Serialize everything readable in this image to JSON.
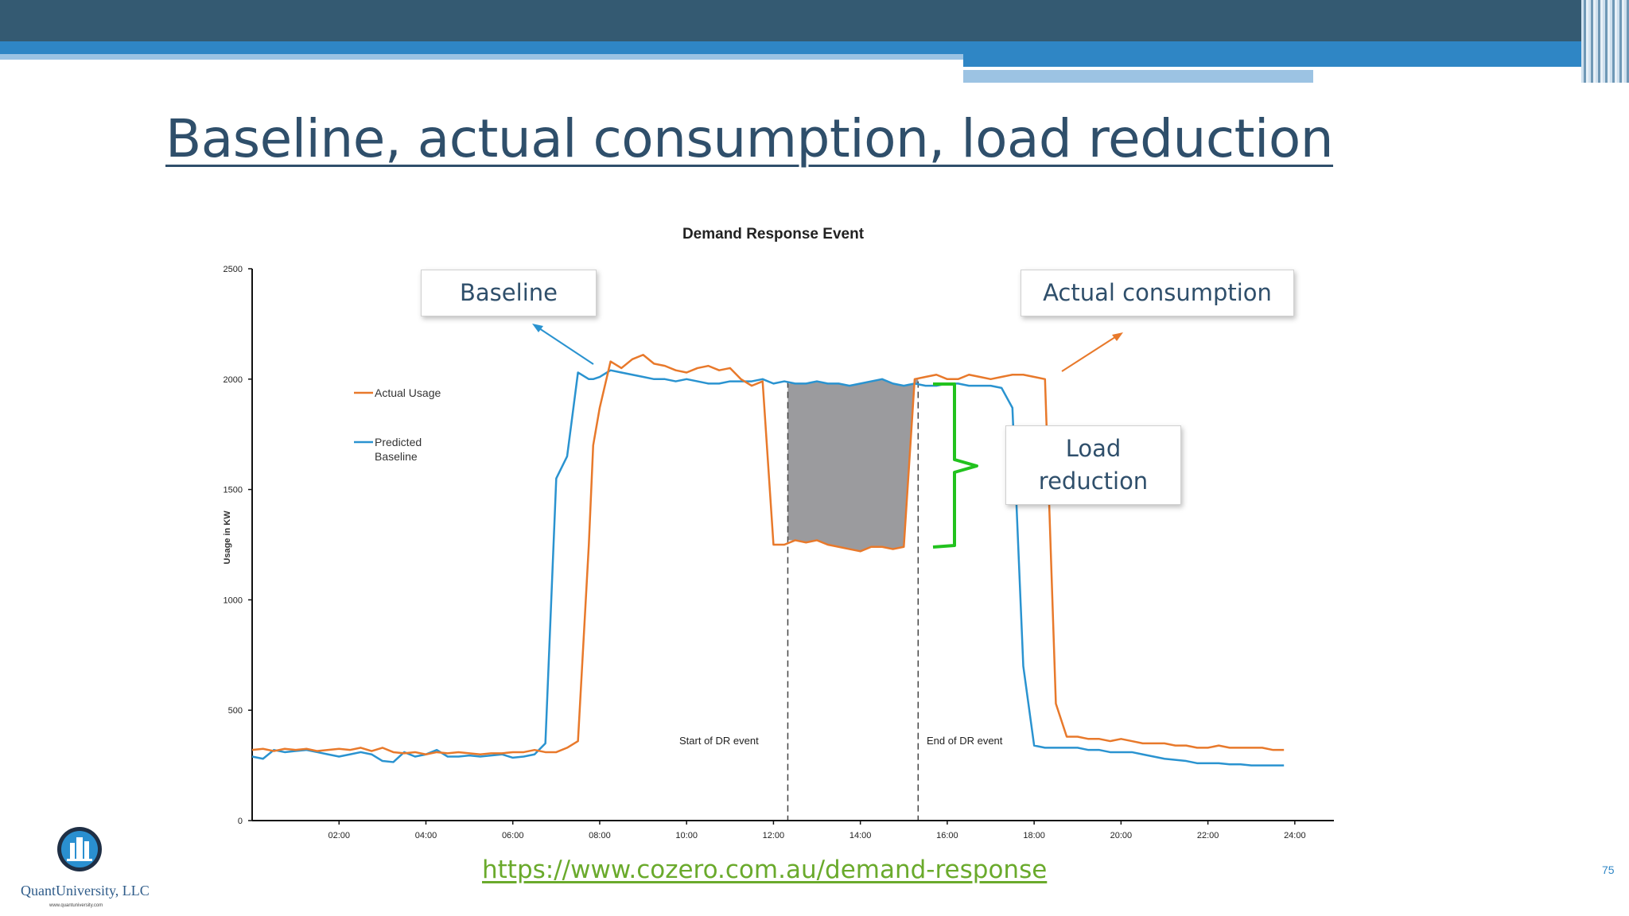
{
  "slide": {
    "title": "Baseline, actual consumption, load reduction",
    "url": "https://www.cozero.com.au/demand-response",
    "page_number": "75",
    "logo": {
      "name": "QuantUniversity, LLC",
      "url": "www.quantuniversity.com",
      "icon": "building-logo-icon"
    }
  },
  "annotations": {
    "baseline": "Baseline",
    "actual": "Actual consumption",
    "load_reduction_line1": "Load",
    "load_reduction_line2": "reduction"
  },
  "colors": {
    "actual": "#e8792b",
    "baseline": "#2a93d0",
    "shade": "#9b9b9e",
    "brace": "#22c21e",
    "title": "#2f4f6b"
  },
  "chart_data": {
    "type": "line",
    "title": "Demand Response Event",
    "xlabel": "",
    "ylabel": "Usage in KW",
    "ylim": [
      0,
      2500
    ],
    "yticks": [
      0,
      500,
      1000,
      1500,
      2000,
      2500
    ],
    "xlim_hours": [
      0,
      24.9
    ],
    "xtick_labels": [
      "02:00",
      "04:00",
      "06:00",
      "08:00",
      "10:00",
      "12:00",
      "14:00",
      "16:00",
      "18:00",
      "20:00",
      "22:00",
      "24:00"
    ],
    "grid": false,
    "legend": "left",
    "event_start_hour": 12.33,
    "event_end_hour": 15.33,
    "event_start_label": "Start of DR event",
    "event_end_label": "End of DR event",
    "series": [
      {
        "name": "Actual Usage",
        "color": "#e8792b",
        "x": [
          0,
          0.25,
          0.5,
          0.75,
          1,
          1.25,
          1.5,
          1.75,
          2,
          2.25,
          2.5,
          2.75,
          3,
          3.25,
          3.5,
          3.75,
          4,
          4.25,
          4.5,
          4.75,
          5,
          5.25,
          5.5,
          5.75,
          6,
          6.25,
          6.5,
          6.75,
          7,
          7.25,
          7.5,
          7.75,
          7.85,
          8,
          8.25,
          8.5,
          8.75,
          9,
          9.25,
          9.5,
          9.75,
          10,
          10.25,
          10.5,
          10.75,
          11,
          11.25,
          11.5,
          11.75,
          12,
          12.25,
          12.5,
          12.75,
          13,
          13.25,
          13.5,
          13.75,
          14,
          14.25,
          14.5,
          14.75,
          15,
          15.25,
          15.5,
          15.75,
          16,
          16.25,
          16.5,
          16.75,
          17,
          17.25,
          17.5,
          17.75,
          18,
          18.25,
          18.5,
          18.75,
          19,
          19.25,
          19.5,
          19.75,
          20,
          20.25,
          20.5,
          20.75,
          21,
          21.25,
          21.5,
          21.75,
          22,
          22.25,
          22.5,
          22.75,
          23,
          23.25,
          23.5,
          23.75
        ],
        "values": [
          320,
          325,
          315,
          325,
          320,
          325,
          315,
          320,
          325,
          320,
          330,
          315,
          330,
          310,
          305,
          310,
          300,
          310,
          305,
          310,
          305,
          300,
          305,
          305,
          310,
          310,
          320,
          310,
          310,
          330,
          360,
          1250,
          1700,
          1870,
          2080,
          2050,
          2090,
          2110,
          2070,
          2060,
          2040,
          2030,
          2050,
          2060,
          2040,
          2050,
          2000,
          1970,
          1990,
          1250,
          1250,
          1270,
          1260,
          1270,
          1250,
          1240,
          1230,
          1220,
          1240,
          1240,
          1230,
          1240,
          2000,
          2010,
          2020,
          2000,
          2000,
          2020,
          2010,
          2000,
          2010,
          2020,
          2020,
          2010,
          2000,
          530,
          380,
          380,
          370,
          370,
          360,
          370,
          360,
          350,
          350,
          350,
          340,
          340,
          330,
          330,
          340,
          330,
          330,
          330,
          330,
          320,
          320
        ]
      },
      {
        "name": "Predicted Baseline",
        "color": "#2a93d0",
        "x": [
          0,
          0.25,
          0.5,
          0.75,
          1,
          1.25,
          1.5,
          1.75,
          2,
          2.25,
          2.5,
          2.75,
          3,
          3.25,
          3.5,
          3.75,
          4,
          4.25,
          4.5,
          4.75,
          5,
          5.25,
          5.5,
          5.75,
          6,
          6.25,
          6.5,
          6.75,
          7,
          7.25,
          7.5,
          7.75,
          7.85,
          8,
          8.25,
          8.5,
          8.75,
          9,
          9.25,
          9.5,
          9.75,
          10,
          10.25,
          10.5,
          10.75,
          11,
          11.25,
          11.5,
          11.75,
          12,
          12.25,
          12.5,
          12.75,
          13,
          13.25,
          13.5,
          13.75,
          14,
          14.25,
          14.5,
          14.75,
          15,
          15.25,
          15.5,
          15.75,
          16,
          16.25,
          16.5,
          16.75,
          17,
          17.25,
          17.5,
          17.75,
          18,
          18.25,
          18.5,
          18.75,
          19,
          19.25,
          19.5,
          19.75,
          20,
          20.25,
          20.5,
          20.75,
          21,
          21.25,
          21.5,
          21.75,
          22,
          22.25,
          22.5,
          22.75,
          23,
          23.25,
          23.5,
          23.75
        ],
        "values": [
          290,
          280,
          320,
          310,
          315,
          320,
          310,
          300,
          290,
          300,
          310,
          300,
          270,
          265,
          310,
          290,
          300,
          320,
          290,
          290,
          295,
          290,
          295,
          300,
          285,
          290,
          300,
          350,
          1550,
          1650,
          2030,
          2000,
          2000,
          2010,
          2040,
          2030,
          2020,
          2010,
          2000,
          2000,
          1990,
          2000,
          1990,
          1980,
          1980,
          1990,
          1990,
          1990,
          2000,
          1980,
          1990,
          1980,
          1980,
          1990,
          1980,
          1980,
          1970,
          1980,
          1990,
          2000,
          1980,
          1970,
          1980,
          1970,
          1970,
          1980,
          1980,
          1970,
          1970,
          1970,
          1960,
          1870,
          700,
          340,
          330,
          330,
          330,
          330,
          320,
          320,
          310,
          310,
          310,
          300,
          290,
          280,
          275,
          270,
          260,
          260,
          260,
          255,
          255,
          250,
          250,
          250,
          250
        ]
      }
    ]
  }
}
